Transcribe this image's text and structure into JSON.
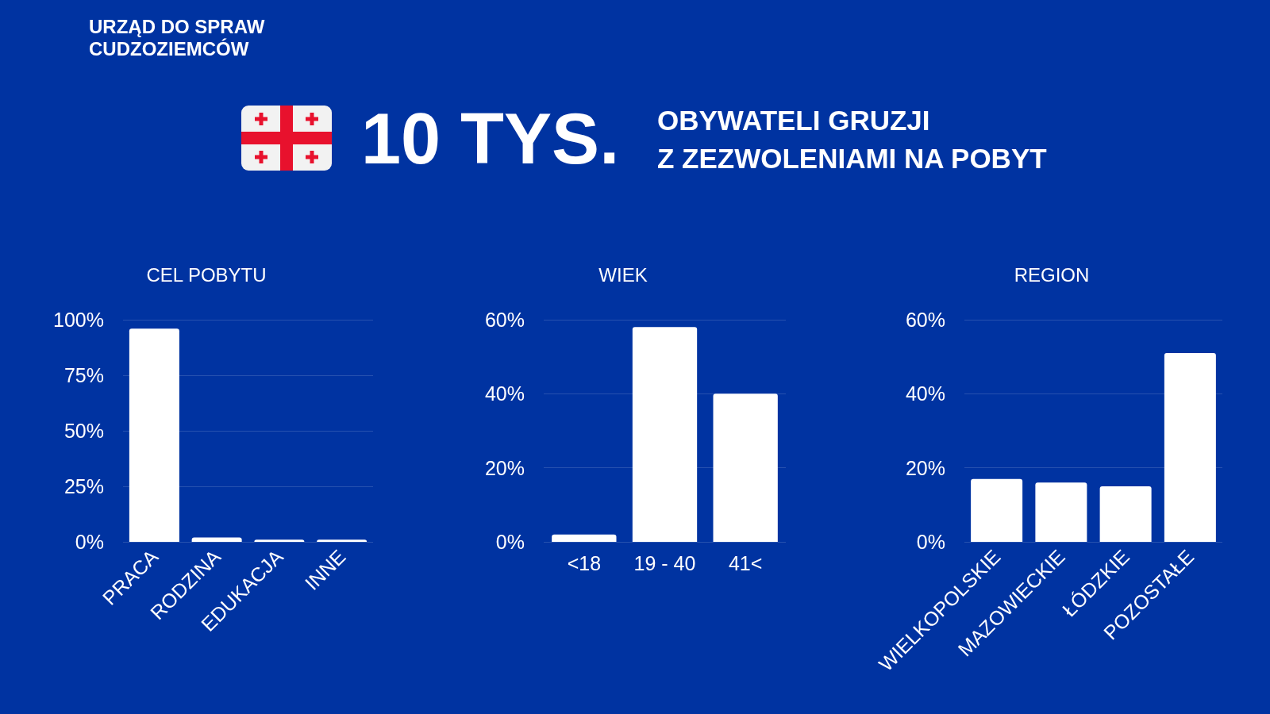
{
  "chart_data": [
    {
      "type": "other",
      "title": "10 TYS.",
      "subtitle": "OBYWATELI GRUZJI\nZ ZEZWOLENIAMI NA POBYT",
      "annotations": [
        "URZĄD DO SPRAW\nCUDZOZIEMCÓW"
      ]
    },
    {
      "type": "bar",
      "title": "CEL POBYTU",
      "categories": [
        "PRACA",
        "RODZINA",
        "EDUKACJA",
        "INNE"
      ],
      "values": [
        96,
        2,
        1,
        1
      ],
      "color": "#ffffff",
      "ylim": [
        0,
        100
      ],
      "yticks": [
        {
          "value": 0,
          "label": "0%"
        },
        {
          "value": 25,
          "label": "25%"
        },
        {
          "value": 50,
          "label": "50%"
        },
        {
          "value": 75,
          "label": "75%"
        },
        {
          "value": 100,
          "label": "100%"
        }
      ],
      "grid": "y"
    },
    {
      "type": "bar",
      "title": "WIEK",
      "categories": [
        "<18",
        "19 - 40",
        "41<"
      ],
      "values": [
        2,
        58,
        40
      ],
      "color": "#ffffff",
      "ylim": [
        0,
        60
      ],
      "yticks": [
        {
          "value": 0,
          "label": "0%"
        },
        {
          "value": 20,
          "label": "20%"
        },
        {
          "value": 40,
          "label": "40%"
        },
        {
          "value": 60,
          "label": "60%"
        }
      ],
      "grid": "y"
    },
    {
      "type": "bar",
      "title": "REGION",
      "categories": [
        "WIELKOPOLSKIE",
        "MAZOWIECKIE",
        "ŁÓDZKIE",
        "POZOSTAŁE"
      ],
      "values": [
        17,
        16,
        15,
        51
      ],
      "color": "#ffffff",
      "ylim": [
        0,
        60
      ],
      "yticks": [
        {
          "value": 0,
          "label": "0%"
        },
        {
          "value": 20,
          "label": "20%"
        },
        {
          "value": 40,
          "label": "40%"
        },
        {
          "value": 60,
          "label": "60%"
        }
      ],
      "grid": "y"
    }
  ]
}
